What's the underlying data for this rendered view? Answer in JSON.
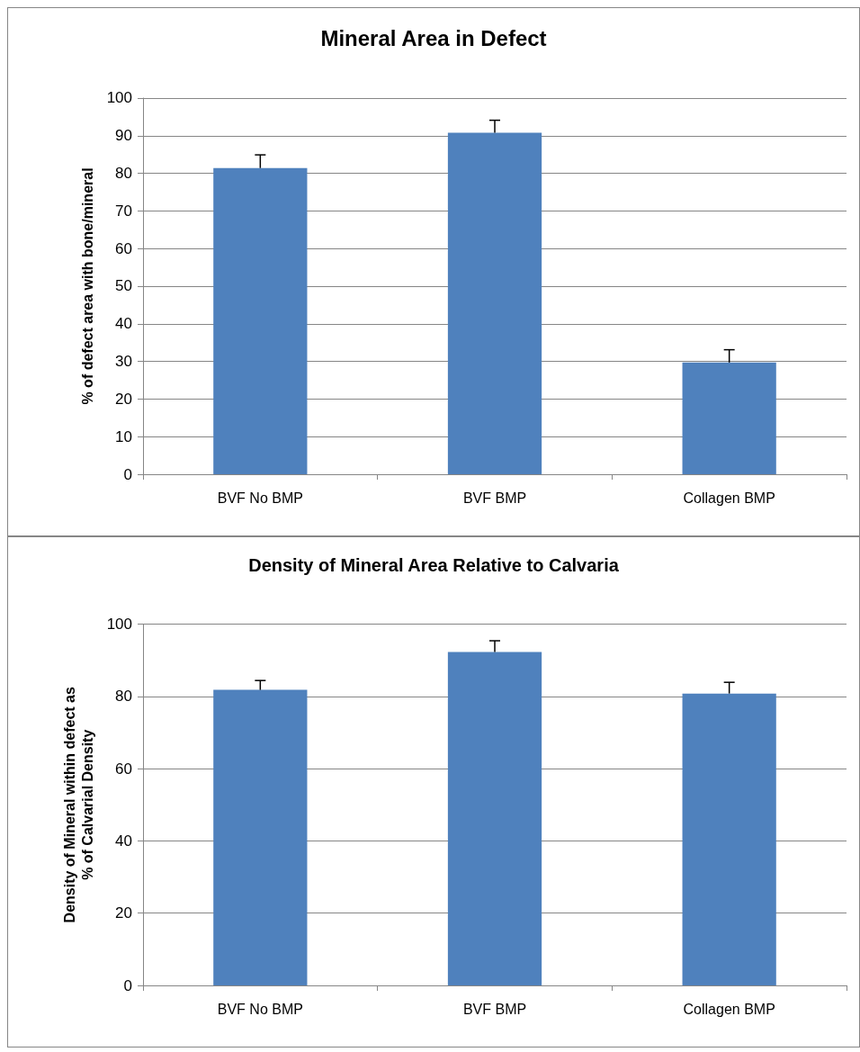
{
  "chart_data": [
    {
      "type": "bar",
      "title": "Mineral Area in Defect",
      "ylabel": "% of defect area with bone/mineral",
      "categories": [
        "BVF No BMP",
        "BVF BMP",
        "Collagen BMP"
      ],
      "values": [
        81.4,
        90.8,
        29.7
      ],
      "errors": [
        [
          81.4,
          84.9
        ],
        [
          90.8,
          94.1
        ],
        [
          29.7,
          33.1
        ]
      ],
      "color": "#4f81bd",
      "ylim": [
        0,
        100
      ],
      "yticks": [
        0,
        10,
        20,
        30,
        40,
        50,
        60,
        70,
        80,
        90,
        100
      ],
      "grid": "y"
    },
    {
      "type": "bar",
      "title": "Density of Mineral Area Relative to Calvaria",
      "ylabel": "Density of Mineral within defect as % of Calvarial Density",
      "categories": [
        "BVF No BMP",
        "BVF BMP",
        "Collagen BMP"
      ],
      "values": [
        81.8,
        92.3,
        80.8
      ],
      "errors": [
        [
          81.8,
          84.4
        ],
        [
          92.3,
          95.4
        ],
        [
          80.8,
          83.9
        ]
      ],
      "color": "#4f81bd",
      "ylim": [
        0,
        100
      ],
      "yticks": [
        0,
        20,
        40,
        60,
        80,
        100
      ],
      "grid": "y"
    }
  ]
}
